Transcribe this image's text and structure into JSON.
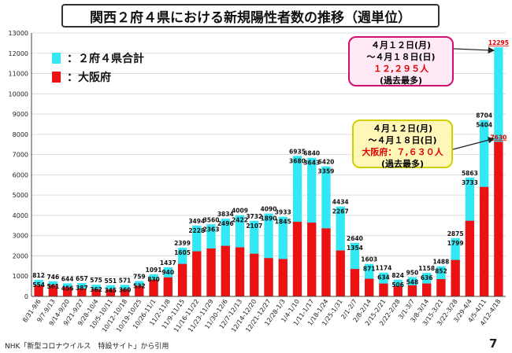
{
  "header": {
    "title": "関西２府４県における新規陽性者数の推移（週単位）"
  },
  "legend": [
    {
      "label": "：２府４県合計",
      "color": "#33e8f5"
    },
    {
      "label": "：大阪府",
      "color": "#ee1111"
    }
  ],
  "callout_total": {
    "line1": "４月１２日(月)",
    "line2": "～４月１８日(日)",
    "value": "１２,２９５人",
    "note": "(過去最多)"
  },
  "callout_osaka": {
    "line1": "４月１２日(月)",
    "line2": "～４月１８日(日)",
    "label": "大阪府：",
    "value": "７,６３０人",
    "note": "(過去最多)"
  },
  "footer": {
    "source": "NHK「新型コロナウイルス　特設サイト」から引用",
    "page": "7"
  },
  "chart_data": {
    "type": "bar",
    "title": "関西２府４県における新規陽性者数の推移（週単位）",
    "categories": [
      "8/31-9/6",
      "9/7-9/13",
      "9/14-9/20",
      "9/21-9/27",
      "9/28-10/4",
      "10/5-10/11",
      "10/12-10/18",
      "10/19-10/25",
      "10/26-11/1",
      "11/2-11/8",
      "11/9-11/15",
      "11/16-11/22",
      "11/23-11/29",
      "11/30-12/6",
      "12/7-12/13",
      "12/14-12/20",
      "12/21-12/27",
      "12/28-1/3",
      "1/4-1/10",
      "1/11-1/17",
      "1/18-1/24",
      "1/25-1/31",
      "2/1-2/7",
      "2/8-2/14",
      "2/15-2/21",
      "2/22-2/28",
      "3/1-3/7",
      "3/8-3/14",
      "3/15-3/21",
      "3/22-3/28",
      "3/29-4/4",
      "4/5-4/11",
      "4/12-4/18"
    ],
    "series": [
      {
        "name": "２府４県合計",
        "color": "#33e8f5",
        "values": [
          812,
          746,
          644,
          657,
          575,
          551,
          571,
          759,
          1091,
          1437,
          2399,
          3494,
          3560,
          3834,
          4009,
          3732,
          4090,
          3933,
          6935,
          6840,
          6420,
          4434,
          2640,
          1603,
          1174,
          824,
          950,
          1158,
          1488,
          2875,
          5863,
          8704,
          12295
        ]
      },
      {
        "name": "大阪府",
        "color": "#ee1111",
        "values": [
          554,
          561,
          456,
          387,
          362,
          345,
          360,
          532,
          830,
          940,
          1605,
          2228,
          2363,
          2496,
          2422,
          2107,
          1890,
          1845,
          3680,
          3643,
          3359,
          2267,
          1354,
          871,
          634,
          506,
          548,
          636,
          852,
          1799,
          3733,
          5404,
          7630
        ]
      }
    ],
    "ylim": [
      0,
      13000
    ],
    "ytick_step": 1000,
    "grid": true
  }
}
